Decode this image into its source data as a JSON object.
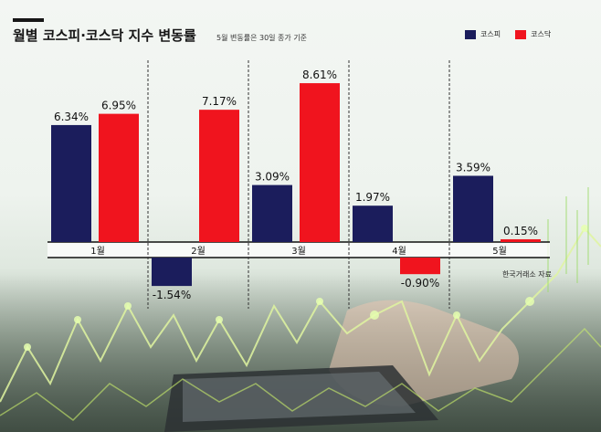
{
  "header": {
    "title": "월별 코스피·코스닥 지수 변동률",
    "subtitle": "5월 변동률은 30일 종가 기준"
  },
  "source": "한국거래소 자료",
  "colors": {
    "kospi": "#1b1d5c",
    "kosdaq": "#f0141e"
  },
  "chart_data": {
    "type": "bar",
    "title": "월별 코스피·코스닥 지수 변동률",
    "categories": [
      "1월",
      "2월",
      "3월",
      "4월",
      "5월"
    ],
    "series": [
      {
        "name": "코스피",
        "values": [
          6.34,
          -1.54,
          3.09,
          1.97,
          3.59
        ],
        "labels": [
          "6.34%",
          "-1.54%",
          "3.09%",
          "1.97%",
          "3.59%"
        ]
      },
      {
        "name": "코스닥",
        "values": [
          6.95,
          7.17,
          8.61,
          -0.9,
          0.15
        ],
        "labels": [
          "6.95%",
          "7.17%",
          "8.61%",
          "-0.90%",
          "0.15%"
        ]
      }
    ],
    "legend_position": "top-right",
    "grid": false,
    "ylim": [
      -2,
      9
    ]
  }
}
